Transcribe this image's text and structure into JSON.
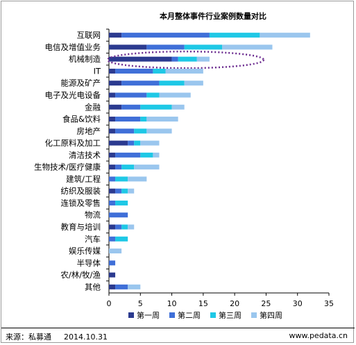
{
  "chart_data": {
    "type": "bar",
    "stacked": true,
    "orientation": "horizontal",
    "title": "本月整体事件行业案例数量对比",
    "categories": [
      "互联网",
      "电信及增值业务",
      "机械制造",
      "IT",
      "能源及矿产",
      "电子及光电设备",
      "金融",
      "食品&饮料",
      "房地产",
      "化工原料及加工",
      "清洁技术",
      "生物技术/医疗健康",
      "建筑/工程",
      "纺织及服装",
      "连锁及零售",
      "物流",
      "教育与培训",
      "汽车",
      "娱乐传媒",
      "半导体",
      "农/林/牧/渔",
      "其他"
    ],
    "series": [
      {
        "name": "第一周",
        "color": "#2b3a8f",
        "values": [
          2,
          6,
          10,
          1,
          2,
          1,
          2,
          1,
          1,
          3,
          1,
          1,
          0,
          1,
          0,
          0,
          1,
          0,
          0,
          0,
          1,
          1
        ]
      },
      {
        "name": "第二周",
        "color": "#3f6fd8",
        "values": [
          14,
          6,
          1,
          6,
          6,
          5,
          3,
          4,
          3,
          1,
          4,
          1,
          1,
          1,
          1,
          3,
          1,
          1,
          0,
          1,
          0,
          2
        ]
      },
      {
        "name": "第三周",
        "color": "#1ec8e6",
        "values": [
          8,
          6,
          3,
          2,
          4,
          2,
          5,
          1,
          2,
          1,
          2,
          2,
          2,
          1,
          2,
          0,
          1,
          2,
          0,
          0,
          0,
          0
        ]
      },
      {
        "name": "第四周",
        "color": "#9ac6ee",
        "values": [
          8,
          8,
          2,
          6,
          3,
          5,
          2,
          5,
          4,
          3,
          1,
          4,
          3,
          1,
          0,
          0,
          1,
          0,
          2,
          0,
          0,
          2
        ]
      }
    ],
    "xlim": [
      0,
      35
    ],
    "xticks": [
      0,
      5,
      10,
      15,
      20,
      25,
      30,
      35
    ],
    "grid": false,
    "legend_position": "bottom",
    "highlight": "机械制造"
  },
  "footer": {
    "source": "来源：私募通",
    "date": "2014.10.31",
    "url": "www.pedata.cn"
  }
}
